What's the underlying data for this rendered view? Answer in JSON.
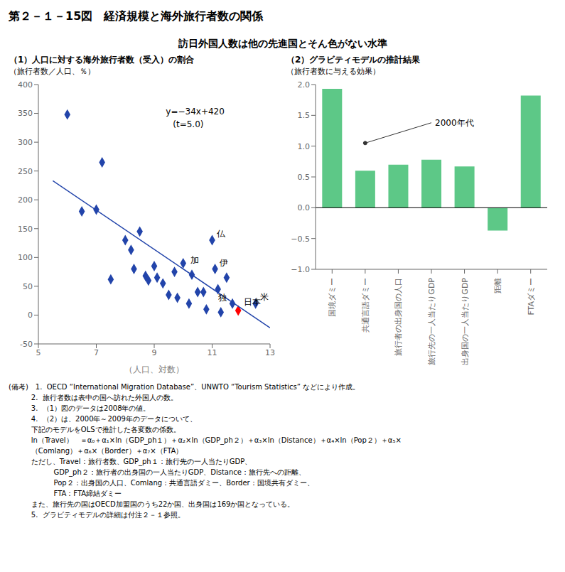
{
  "title": "第２－１－15図　経済規模と海外旅行者数の関係",
  "subtitle": "訪日外国人数は他の先進国とそん色がない水準",
  "footnotes": [
    "(備考)　1.  OECD “International Migration Database”、UNWTO “Tourism Statistics” などにより作成。",
    "          2.  旅行者数は表中の国へ訪れた外国人の数。",
    "          3.  （1）図のデータは2008年の値。",
    "          4.  （2）は、2000年～2009年のデータについて、",
    "          下記のモデルをOLSで推計した各変数の係数。",
    "          ln（Travel）　＝α₀＋α₁×ln（GDP_ph１）＋α₂×ln（GDP_ph２）＋α₃×ln（Distance）＋α₄×ln（Pop２）＋α₅×",
    "          （Comlang）＋α₆×（Border）＋α₇×（FTA）",
    "          ただし、Travel：旅行者数、GDP_ph１：旅行先の一人当たりGDP、",
    "                    GDP_ph２：旅行者の出身国の一人当たりGDP、Distance：旅行先への距離、",
    "                    Pop２：出身国の人口、Comlang：共通言語ダミー、Border：国境共有ダミー、",
    "                    FTA：FTA締結ダミー",
    "          また、旅行先の国はOECD加盟国のうち22か国、出身国は169か国となっている。",
    "          5.  グラビティモデルの詳細は付注２－１参照。"
  ],
  "chart_data": [
    {
      "type": "scatter",
      "title": "（1）人口に対する海外旅行者数（受入）の割合",
      "y_label": "（旅行者数／人口、％）",
      "x_label": "（人口、対数）",
      "xlim": [
        5,
        13
      ],
      "xticks": [
        5,
        7,
        9,
        11,
        13
      ],
      "ylim": [
        -50,
        400
      ],
      "yticks": [
        -50,
        0,
        50,
        100,
        150,
        200,
        250,
        300,
        350,
        400
      ],
      "grid": false,
      "series": [
        {
          "type": "scatter",
          "marker": "diamond",
          "color": "#2244aa",
          "x": [
            6.0,
            6.5,
            7.0,
            7.2,
            7.5,
            8.0,
            8.2,
            8.3,
            8.5,
            8.7,
            8.8,
            9.0,
            9.1,
            9.3,
            9.5,
            9.7,
            9.8,
            10.0,
            10.2,
            10.3,
            10.5,
            10.7,
            10.8,
            11.0,
            11.1,
            11.2,
            11.3,
            11.5,
            11.7,
            12.5
          ],
          "values": [
            348,
            180,
            183,
            265,
            62,
            130,
            113,
            80,
            145,
            68,
            60,
            85,
            65,
            55,
            35,
            75,
            30,
            90,
            20,
            70,
            40,
            40,
            10,
            130,
            80,
            45,
            5,
            65,
            20,
            20
          ]
        },
        {
          "type": "scatter",
          "marker": "diamond",
          "color": "red",
          "x": [
            11.9
          ],
          "values": [
            8
          ]
        },
        {
          "type": "line",
          "color": "#2244aa",
          "x": [
            5.5,
            13.0
          ],
          "values": [
            233.0,
            -22.0
          ]
        }
      ],
      "point_labels": [
        {
          "label": "仏",
          "x": 11.0,
          "y": 130
        },
        {
          "label": "加",
          "x": 10.7,
          "y": 85
        },
        {
          "label": "伊",
          "x": 11.1,
          "y": 80
        },
        {
          "label": "日本",
          "x": 11.9,
          "y": 8
        },
        {
          "label": "独",
          "x": 11.3,
          "y": 45
        },
        {
          "label": "米",
          "x": 12.5,
          "y": 20
        }
      ],
      "annotations": [
        "y=−34x+420",
        "(t=5.0)"
      ]
    },
    {
      "type": "bar",
      "title": "（2）グラビティモデルの推計結果",
      "y_label": "（旅行者数に与える効果）",
      "categories": [
        "国境ダミー",
        "共通言語ダミー",
        "旅行者の出身国の人口",
        "旅行先の一人当たりGDP",
        "出身国の一人当たりGDP",
        "距離",
        "FTAダミー"
      ],
      "values": [
        1.93,
        0.6,
        0.7,
        0.78,
        0.67,
        -0.37,
        1.82
      ],
      "color": "#5dc887",
      "ylim": [
        -1.0,
        2.0
      ],
      "yticks": [
        {
          "value": -1.0,
          "label": "−1.0"
        },
        {
          "value": -0.5,
          "label": "−0.5"
        },
        {
          "value": 0.0,
          "label": "0.0"
        },
        0.5,
        {
          "value": 1.0,
          "label": "1.0"
        },
        1.5,
        {
          "value": 2.0,
          "label": "2.0"
        }
      ],
      "grid": false,
      "annotations": [
        "2000年代"
      ]
    }
  ]
}
